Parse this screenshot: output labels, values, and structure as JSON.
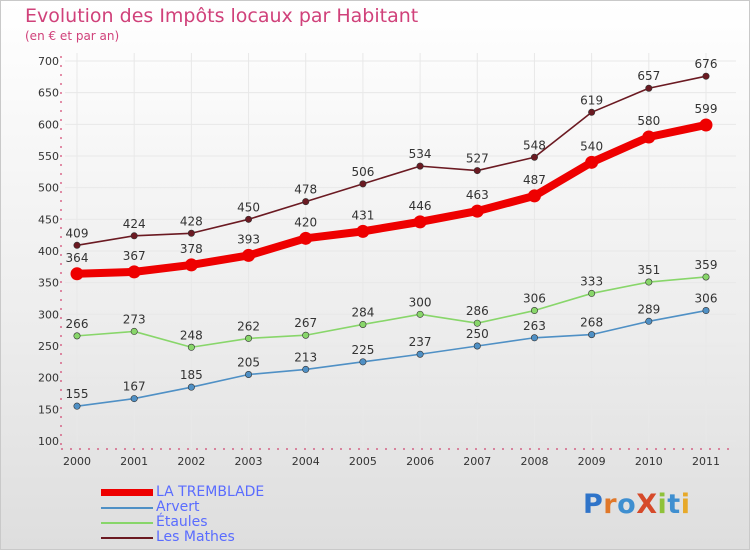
{
  "title": "Evolution des Impôts locaux par Habitant",
  "subtitle": "(en € et par an)",
  "logo_text": "ProXiti",
  "colors": {
    "title": "#d0417a",
    "legend_text": "#5a6cff",
    "axis": "#cc2255",
    "grid": "#e8e8e8"
  },
  "chart_data": {
    "type": "line",
    "x": [
      "2000",
      "2001",
      "2002",
      "2003",
      "2004",
      "2005",
      "2006",
      "2007",
      "2008",
      "2009",
      "2010",
      "2011"
    ],
    "ylim": [
      100,
      700
    ],
    "yticks": [
      100,
      150,
      200,
      250,
      300,
      350,
      400,
      450,
      500,
      550,
      600,
      650,
      700
    ],
    "grid": true,
    "legend_position": "bottom-left",
    "series": [
      {
        "name": "LA TREMBLADE",
        "color": "#ee0000",
        "values": [
          364,
          367,
          378,
          393,
          420,
          431,
          446,
          463,
          487,
          540,
          580,
          599
        ],
        "emphasis": true
      },
      {
        "name": "Arvert",
        "color": "#4f90c5",
        "values": [
          155,
          167,
          185,
          205,
          213,
          225,
          237,
          250,
          263,
          268,
          289,
          306
        ]
      },
      {
        "name": "Étaules",
        "color": "#88d66a",
        "values": [
          266,
          273,
          248,
          262,
          267,
          284,
          300,
          286,
          306,
          333,
          351,
          359
        ]
      },
      {
        "name": "Les Mathes",
        "color": "#6b1a22",
        "values": [
          409,
          424,
          428,
          450,
          478,
          506,
          534,
          527,
          548,
          619,
          657,
          676
        ]
      }
    ]
  }
}
